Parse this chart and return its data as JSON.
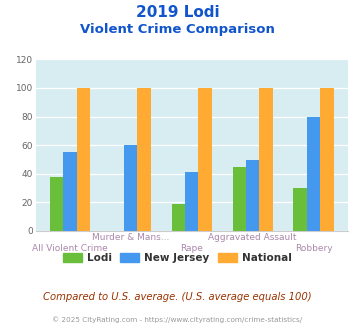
{
  "title_line1": "2019 Lodi",
  "title_line2": "Violent Crime Comparison",
  "categories": [
    "All Violent Crime",
    "Murder & Mans...",
    "Rape",
    "Aggravated Assault",
    "Robbery"
  ],
  "lodi": [
    38,
    0,
    19,
    45,
    30
  ],
  "new_jersey": [
    55,
    60,
    41,
    50,
    80
  ],
  "national": [
    100,
    100,
    100,
    100,
    100
  ],
  "lodi_color": "#6abf3a",
  "nj_color": "#4499ee",
  "nat_color": "#ffaa33",
  "ylim": [
    0,
    120
  ],
  "yticks": [
    0,
    20,
    40,
    60,
    80,
    100,
    120
  ],
  "bg_color": "#d8edf2",
  "title_color": "#1155cc",
  "subtitle_color": "#1155cc",
  "xlabel_color": "#aa88aa",
  "legend_labels": [
    "Lodi",
    "New Jersey",
    "National"
  ],
  "footer_text": "Compared to U.S. average. (U.S. average equals 100)",
  "copyright_text": "© 2025 CityRating.com - https://www.cityrating.com/crime-statistics/",
  "bar_width": 0.22
}
